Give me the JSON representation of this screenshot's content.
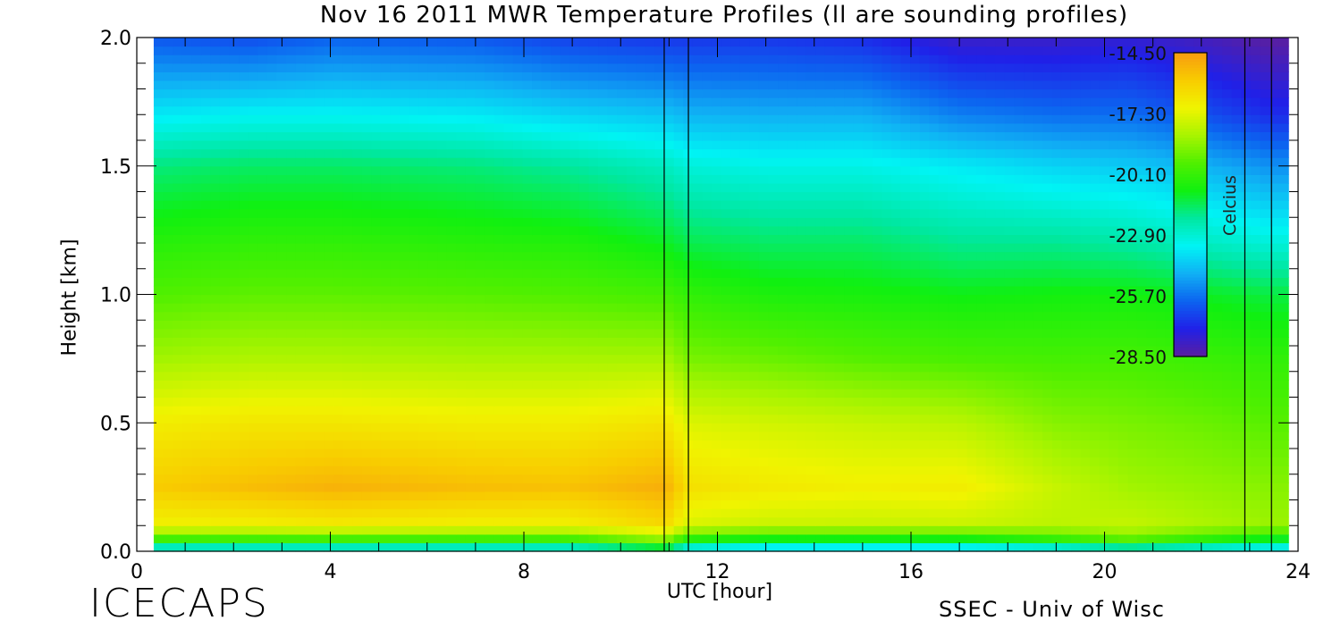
{
  "title": "Nov 16 2011 MWR Temperature Profiles (ll are sounding profiles)",
  "xlabel": "UTC [hour]",
  "ylabel": "Height [km]",
  "branding": "ICECAPS",
  "credit": "SSEC - Univ of Wisc",
  "colorbar": {
    "label": "Celcius",
    "ticks": [
      "-14.50",
      "-17.30",
      "-20.10",
      "-22.90",
      "-25.70",
      "-28.50"
    ],
    "min": -28.5,
    "max": -14.5,
    "colors": [
      "#5a1fa0",
      "#2020e8",
      "#0c64f0",
      "#10b0f4",
      "#00f4f4",
      "#00e8a0",
      "#10f010",
      "#50f000",
      "#a8f400",
      "#f0f400",
      "#f8cc00",
      "#f89c10"
    ]
  },
  "chart_data": {
    "type": "heatmap",
    "title": "Nov 16 2011 MWR Temperature Profiles (ll are sounding profiles)",
    "xlabel": "UTC [hour]",
    "ylabel": "Height [km]",
    "xlim": [
      0,
      24
    ],
    "ylim": [
      0,
      2
    ],
    "x_ticks": [
      "0",
      "4",
      "8",
      "12",
      "16",
      "20",
      "24"
    ],
    "y_ticks": [
      "0.0",
      "0.5",
      "1.0",
      "1.5",
      "2.0"
    ],
    "x_minor_step": 1,
    "y_minor_step": 0.1,
    "data_x_range": [
      0.35,
      23.8
    ],
    "sounding_times": [
      10.9,
      11.4,
      22.9,
      23.45
    ],
    "x": [
      0.35,
      2.3,
      4.1,
      7.0,
      8.9,
      10.9,
      11.4,
      13.0,
      15.0,
      17.0,
      19.0,
      20.5,
      22.0,
      23.45
    ],
    "y": [
      0.0,
      0.03,
      0.1,
      0.25,
      0.5,
      0.75,
      1.0,
      1.2,
      1.5,
      1.7,
      2.0
    ],
    "values": [
      [
        -24.5,
        -24.5,
        -24.5,
        -24.5,
        -24.5,
        -23.0,
        -24.5,
        -25.0,
        -25.0,
        -25.0,
        -25.0,
        -24.5,
        -24.5,
        -24.5
      ],
      [
        -21.0,
        -21.0,
        -21.0,
        -21.0,
        -21.0,
        -19.5,
        -21.5,
        -22.0,
        -22.0,
        -22.0,
        -21.0,
        -20.0,
        -21.0,
        -22.0
      ],
      [
        -17.0,
        -17.0,
        -16.8,
        -17.0,
        -17.0,
        -16.2,
        -17.5,
        -17.8,
        -17.8,
        -17.8,
        -18.0,
        -17.8,
        -18.2,
        -18.5
      ],
      [
        -15.8,
        -15.4,
        -15.1,
        -15.4,
        -15.5,
        -15.0,
        -16.4,
        -16.7,
        -16.9,
        -16.8,
        -17.8,
        -18.4,
        -18.6,
        -18.8
      ],
      [
        -16.8,
        -16.6,
        -16.6,
        -16.8,
        -16.8,
        -16.5,
        -17.4,
        -17.6,
        -17.8,
        -18.0,
        -18.8,
        -19.0,
        -19.2,
        -19.5
      ],
      [
        -18.4,
        -18.2,
        -18.2,
        -18.3,
        -18.3,
        -18.3,
        -19.0,
        -19.2,
        -19.5,
        -19.7,
        -19.8,
        -19.8,
        -20.0,
        -20.2
      ],
      [
        -19.6,
        -19.4,
        -19.4,
        -19.5,
        -19.6,
        -19.8,
        -20.2,
        -20.6,
        -20.7,
        -20.9,
        -20.8,
        -20.8,
        -21.0,
        -21.3
      ],
      [
        -20.4,
        -20.2,
        -20.2,
        -20.4,
        -20.5,
        -21.0,
        -21.4,
        -21.6,
        -21.6,
        -22.0,
        -22.0,
        -22.2,
        -22.6,
        -23.0
      ],
      [
        -21.8,
        -21.6,
        -21.6,
        -21.8,
        -22.1,
        -22.6,
        -23.0,
        -23.2,
        -23.2,
        -23.6,
        -24.0,
        -24.2,
        -24.6,
        -25.2
      ],
      [
        -23.6,
        -23.4,
        -23.4,
        -23.6,
        -24.0,
        -24.3,
        -24.6,
        -24.7,
        -24.7,
        -25.5,
        -25.8,
        -25.8,
        -26.3,
        -27.0
      ],
      [
        -26.2,
        -26.4,
        -26.0,
        -26.2,
        -26.6,
        -26.8,
        -26.8,
        -26.8,
        -27.0,
        -27.8,
        -27.8,
        -27.6,
        -28.0,
        -28.5
      ]
    ]
  }
}
